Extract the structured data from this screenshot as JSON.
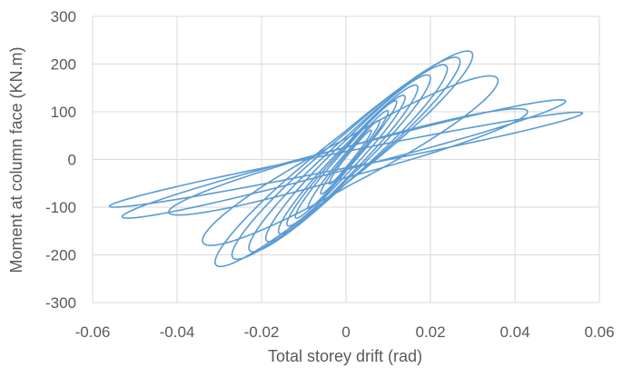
{
  "chart_data": {
    "type": "line",
    "title": "",
    "xlabel": "Total storey drift (rad)",
    "ylabel": "Moment at column face (KN.m)",
    "xlim": [
      -0.06,
      0.06
    ],
    "ylim": [
      -300,
      300
    ],
    "x_ticks": [
      -0.06,
      -0.04,
      -0.02,
      0,
      0.02,
      0.04,
      0.06
    ],
    "x_tick_labels": [
      "-0.06",
      "-0.04",
      "-0.02",
      "0",
      "0.02",
      "0.04",
      "0.06"
    ],
    "y_ticks": [
      -300,
      -200,
      -100,
      0,
      100,
      200,
      300
    ],
    "y_tick_labels": [
      "-300",
      "-200",
      "-100",
      "0",
      "100",
      "200",
      "300"
    ],
    "grid": "major, both axes",
    "legend": "none",
    "line_color": "#5b9bd5",
    "series": [
      {
        "description": "hysteresis loops",
        "loops": [
          {
            "x_peak": 0.006,
            "y_peak": 60,
            "x_neg": -0.004,
            "y_neg": -50,
            "width": 25
          },
          {
            "x_peak": 0.008,
            "y_peak": 80,
            "x_neg": -0.006,
            "y_neg": -70,
            "width": 35
          },
          {
            "x_peak": 0.01,
            "y_peak": 100,
            "x_neg": -0.009,
            "y_neg": -100,
            "width": 45
          },
          {
            "x_peak": 0.012,
            "y_peak": 120,
            "x_neg": -0.012,
            "y_neg": -120,
            "width": 55
          },
          {
            "x_peak": 0.014,
            "y_peak": 130,
            "x_neg": -0.014,
            "y_neg": -135,
            "width": 70
          },
          {
            "x_peak": 0.017,
            "y_peak": 150,
            "x_neg": -0.016,
            "y_neg": -150,
            "width": 85
          },
          {
            "x_peak": 0.02,
            "y_peak": 170,
            "x_neg": -0.019,
            "y_neg": -165,
            "width": 100
          },
          {
            "x_peak": 0.024,
            "y_peak": 190,
            "x_neg": -0.023,
            "y_neg": -185,
            "width": 115
          },
          {
            "x_peak": 0.027,
            "y_peak": 205,
            "x_neg": -0.027,
            "y_neg": -200,
            "width": 125
          },
          {
            "x_peak": 0.03,
            "y_peak": 218,
            "x_neg": -0.031,
            "y_neg": -215,
            "width": 130
          },
          {
            "x_peak": 0.036,
            "y_peak": 165,
            "x_neg": -0.034,
            "y_neg": -170,
            "width": 120
          },
          {
            "x_peak": 0.043,
            "y_peak": 100,
            "x_neg": -0.042,
            "y_neg": -110,
            "width": 75
          },
          {
            "x_peak": 0.052,
            "y_peak": 122,
            "x_neg": -0.053,
            "y_neg": -120,
            "width": 55
          },
          {
            "x_peak": 0.056,
            "y_peak": 97,
            "x_neg": -0.056,
            "y_neg": -98,
            "width": 40
          }
        ]
      }
    ]
  }
}
